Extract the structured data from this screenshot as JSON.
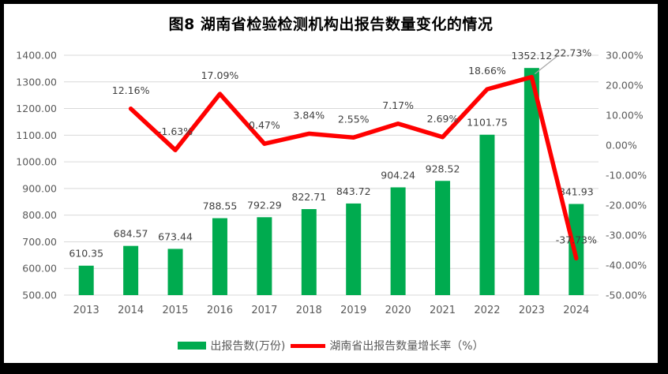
{
  "chart_data": {
    "type": "bar+line",
    "title": "图8  湖南省检验检测机构出报告数量变化的情况",
    "categories": [
      "2013",
      "2014",
      "2015",
      "2016",
      "2017",
      "2018",
      "2019",
      "2020",
      "2021",
      "2022",
      "2023",
      "2024"
    ],
    "series": [
      {
        "name": "出报告数(万份)",
        "type": "bar",
        "axis": "left",
        "color": "#00AB4F",
        "values": [
          610.35,
          684.57,
          673.44,
          788.55,
          792.29,
          822.71,
          843.72,
          904.24,
          928.52,
          1101.75,
          1352.12,
          841.93
        ],
        "labels": [
          "610.35",
          "684.57",
          "673.44",
          "788.55",
          "792.29",
          "822.71",
          "843.72",
          "904.24",
          "928.52",
          "1101.75",
          "1352.12",
          "841.93"
        ]
      },
      {
        "name": "湖南省出报告数量增长率（%）",
        "type": "line",
        "axis": "right",
        "color": "#FF0000",
        "values": [
          null,
          12.16,
          -1.63,
          17.09,
          0.47,
          3.84,
          2.55,
          7.17,
          2.69,
          18.66,
          22.73,
          -37.73
        ],
        "labels": [
          null,
          "12.16%",
          "-1.63%",
          "17.09%",
          "0.47%",
          "3.84%",
          "2.55%",
          "7.17%",
          "2.69%",
          "18.66%",
          "22.73%",
          "-37.73%"
        ]
      }
    ],
    "left_axis": {
      "min": 500,
      "max": 1400,
      "step": 100,
      "ticks": [
        "1400.00",
        "1300.00",
        "1200.00",
        "1100.00",
        "1000.00",
        "900.00",
        "800.00",
        "700.00",
        "600.00",
        "500.00"
      ]
    },
    "right_axis": {
      "min": -50,
      "max": 30,
      "step": 10,
      "ticks": [
        "30.00%",
        "20.00%",
        "10.00%",
        "0.00%",
        "-10.00%",
        "-20.00%",
        "-30.00%",
        "-40.00%",
        "-50.00%"
      ]
    },
    "grid": true,
    "legend_position": "bottom",
    "colors": {
      "grid": "#D9D9D9",
      "axis_text": "#595959",
      "data_label_text": "#404040",
      "leader": "#A6A6A6",
      "title_text": "#000000",
      "plot_background": "#FFFFFF",
      "frame": "#000000"
    },
    "label_adjustments": {
      "line": {
        "10": {
          "dx": 52,
          "dy": -7,
          "leader": true
        }
      }
    }
  },
  "legend": {
    "items": [
      {
        "label": "出报告数(万份)",
        "marker": "bar",
        "color": "#00AB4F"
      },
      {
        "label": "湖南省出报告数量增长率（%）",
        "marker": "line",
        "color": "#FF0000"
      }
    ]
  }
}
